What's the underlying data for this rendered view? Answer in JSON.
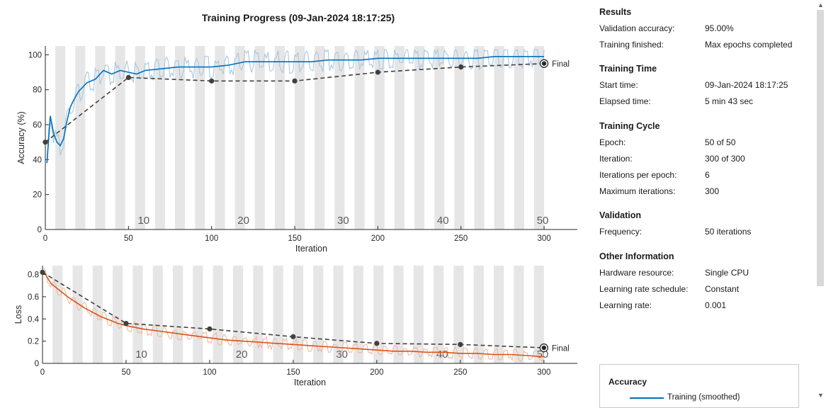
{
  "title": "Training Progress (09-Jan-2024 18:17:25)",
  "colors": {
    "accuracy": "#0072bd",
    "accuracy_raw": "#a6c8e4",
    "loss": "#d95319",
    "loss_raw": "#f0b9a0",
    "validation": "#404040",
    "epoch_band": "#e6e6e6"
  },
  "chart_data": [
    {
      "type": "line",
      "name": "accuracy",
      "xlabel": "Iteration",
      "ylabel": "Accuracy (%)",
      "xlim": [
        0,
        320
      ],
      "ylim": [
        0,
        105
      ],
      "xticks": [
        0,
        50,
        100,
        150,
        200,
        250,
        300
      ],
      "yticks": [
        0,
        20,
        40,
        60,
        80,
        100
      ],
      "epoch_labels": [
        "10",
        "20",
        "30",
        "40",
        "50"
      ],
      "epoch_label_iterations": [
        60,
        120,
        180,
        240,
        300
      ],
      "final_label": "Final",
      "series": [
        {
          "role": "training-smoothed",
          "x": [
            1,
            3,
            5,
            7,
            9,
            11,
            13,
            15,
            17,
            20,
            25,
            30,
            35,
            40,
            45,
            50,
            55,
            60,
            70,
            80,
            90,
            100,
            110,
            120,
            130,
            140,
            150,
            160,
            170,
            180,
            190,
            200,
            210,
            220,
            230,
            240,
            250,
            260,
            270,
            280,
            290,
            300
          ],
          "y": [
            38,
            65,
            55,
            50,
            48,
            52,
            62,
            70,
            74,
            79,
            84,
            86,
            91,
            89,
            91,
            90,
            89,
            91,
            92,
            93,
            93,
            93,
            94,
            96,
            96,
            96,
            96,
            96,
            97,
            97,
            97,
            98,
            98,
            98,
            98,
            98,
            98,
            98,
            99,
            99,
            99,
            99
          ]
        },
        {
          "role": "validation",
          "x": [
            0,
            50,
            100,
            150,
            200,
            250,
            300
          ],
          "y": [
            50,
            87,
            85,
            85,
            90,
            93,
            95
          ]
        }
      ]
    },
    {
      "type": "line",
      "name": "loss",
      "xlabel": "Iteration",
      "ylabel": "Loss",
      "xlim": [
        0,
        320
      ],
      "ylim": [
        0,
        0.88
      ],
      "xticks": [
        0,
        50,
        100,
        150,
        200,
        250,
        300
      ],
      "yticks": [
        0,
        0.2,
        0.4,
        0.6,
        0.8
      ],
      "epoch_labels": [
        "10",
        "20",
        "30",
        "40",
        "50"
      ],
      "epoch_label_iterations": [
        60,
        120,
        180,
        240,
        300
      ],
      "final_label": "Final",
      "series": [
        {
          "role": "training-smoothed",
          "x": [
            1,
            5,
            10,
            15,
            20,
            25,
            30,
            35,
            40,
            45,
            50,
            60,
            70,
            80,
            90,
            100,
            110,
            120,
            130,
            140,
            150,
            160,
            170,
            180,
            190,
            200,
            210,
            220,
            230,
            240,
            250,
            260,
            270,
            280,
            290,
            300
          ],
          "y": [
            0.82,
            0.72,
            0.66,
            0.6,
            0.55,
            0.5,
            0.46,
            0.42,
            0.39,
            0.36,
            0.34,
            0.31,
            0.29,
            0.27,
            0.25,
            0.23,
            0.21,
            0.2,
            0.19,
            0.18,
            0.17,
            0.16,
            0.15,
            0.14,
            0.13,
            0.12,
            0.11,
            0.11,
            0.1,
            0.1,
            0.09,
            0.09,
            0.08,
            0.08,
            0.07,
            0.06
          ]
        },
        {
          "role": "validation",
          "x": [
            0,
            50,
            100,
            150,
            200,
            250,
            300
          ],
          "y": [
            0.82,
            0.36,
            0.31,
            0.24,
            0.18,
            0.17,
            0.14
          ]
        }
      ]
    }
  ],
  "info": {
    "results": {
      "title": "Results",
      "rows": [
        {
          "label": "Validation accuracy:",
          "value": "95.00%"
        },
        {
          "label": "Training finished:",
          "value": "Max epochs completed"
        }
      ]
    },
    "time": {
      "title": "Training Time",
      "rows": [
        {
          "label": "Start time:",
          "value": "09-Jan-2024 18:17:25"
        },
        {
          "label": "Elapsed time:",
          "value": "5 min 43 sec"
        }
      ]
    },
    "cycle": {
      "title": "Training Cycle",
      "rows": [
        {
          "label": "Epoch:",
          "value": "50 of 50"
        },
        {
          "label": "Iteration:",
          "value": "300 of 300"
        },
        {
          "label": "Iterations per epoch:",
          "value": "6"
        },
        {
          "label": "Maximum iterations:",
          "value": "300"
        }
      ]
    },
    "validation": {
      "title": "Validation",
      "rows": [
        {
          "label": "Frequency:",
          "value": "50 iterations"
        }
      ]
    },
    "other": {
      "title": "Other Information",
      "rows": [
        {
          "label": "Hardware resource:",
          "value": "Single CPU"
        },
        {
          "label": "Learning rate schedule:",
          "value": "Constant"
        },
        {
          "label": "Learning rate:",
          "value": "0.001"
        }
      ]
    }
  },
  "legend": {
    "title": "Accuracy",
    "items": [
      "Training (smoothed)"
    ]
  }
}
